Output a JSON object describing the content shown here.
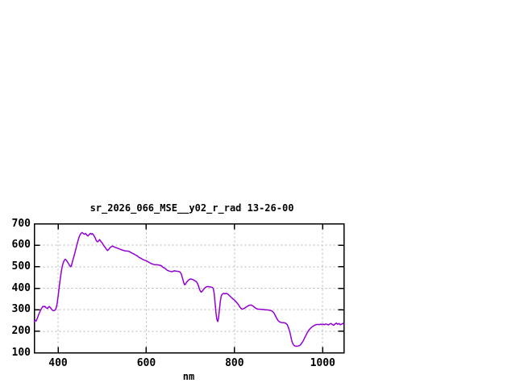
{
  "page": {
    "background": "#ffffff"
  },
  "chart": {
    "title": "sr_2026_066_MSE__y02_r_rad 13-26-00",
    "axis_color": "#000000",
    "grid_color": "#b4b4b4",
    "text_color": "#000000"
  },
  "chart_data": {
    "type": "line",
    "title": "sr_2026_066_MSE__y02_r_rad 13-26-00",
    "xlabel": "nm",
    "ylabel": "",
    "xlim": [
      346,
      1048
    ],
    "ylim": [
      100,
      700
    ],
    "xticks": [
      400,
      600,
      800,
      1000
    ],
    "yticks": [
      100,
      200,
      300,
      400,
      500,
      600,
      700
    ],
    "grid": true,
    "grid_style": "dashed",
    "legend": false,
    "series": [
      {
        "name": "sr_2026_066_MSE__y02_r_rad",
        "color": "#9400d3",
        "points": [
          [
            346,
            245
          ],
          [
            348,
            252
          ],
          [
            350,
            247
          ],
          [
            352,
            256
          ],
          [
            355,
            272
          ],
          [
            358,
            288
          ],
          [
            361,
            300
          ],
          [
            364,
            311
          ],
          [
            366,
            316
          ],
          [
            368,
            313
          ],
          [
            370,
            316
          ],
          [
            373,
            309
          ],
          [
            376,
            306
          ],
          [
            378,
            311
          ],
          [
            380,
            315
          ],
          [
            383,
            309
          ],
          [
            386,
            300
          ],
          [
            389,
            296
          ],
          [
            392,
            297
          ],
          [
            394,
            301
          ],
          [
            396,
            311
          ],
          [
            398,
            330
          ],
          [
            400,
            360
          ],
          [
            402,
            395
          ],
          [
            404,
            428
          ],
          [
            406,
            458
          ],
          [
            408,
            486
          ],
          [
            410,
            506
          ],
          [
            412,
            520
          ],
          [
            414,
            529
          ],
          [
            416,
            535
          ],
          [
            418,
            532
          ],
          [
            420,
            526
          ],
          [
            422,
            520
          ],
          [
            424,
            513
          ],
          [
            426,
            506
          ],
          [
            428,
            500
          ],
          [
            430,
            503
          ],
          [
            432,
            518
          ],
          [
            434,
            534
          ],
          [
            436,
            548
          ],
          [
            438,
            563
          ],
          [
            440,
            580
          ],
          [
            442,
            596
          ],
          [
            444,
            612
          ],
          [
            446,
            627
          ],
          [
            448,
            640
          ],
          [
            450,
            649
          ],
          [
            452,
            655
          ],
          [
            454,
            659
          ],
          [
            456,
            656
          ],
          [
            458,
            653
          ],
          [
            460,
            651
          ],
          [
            462,
            655
          ],
          [
            464,
            651
          ],
          [
            466,
            645
          ],
          [
            468,
            643
          ],
          [
            470,
            648
          ],
          [
            472,
            653
          ],
          [
            474,
            655
          ],
          [
            476,
            651
          ],
          [
            478,
            654
          ],
          [
            480,
            649
          ],
          [
            482,
            642
          ],
          [
            484,
            635
          ],
          [
            486,
            624
          ],
          [
            488,
            618
          ],
          [
            490,
            616
          ],
          [
            492,
            621
          ],
          [
            494,
            626
          ],
          [
            496,
            621
          ],
          [
            498,
            615
          ],
          [
            500,
            611
          ],
          [
            503,
            599
          ],
          [
            506,
            592
          ],
          [
            509,
            583
          ],
          [
            512,
            575
          ],
          [
            515,
            581
          ],
          [
            518,
            589
          ],
          [
            521,
            594
          ],
          [
            524,
            596
          ],
          [
            527,
            592
          ],
          [
            530,
            590
          ],
          [
            533,
            588
          ],
          [
            536,
            585
          ],
          [
            539,
            583
          ],
          [
            542,
            580
          ],
          [
            545,
            578
          ],
          [
            548,
            576
          ],
          [
            552,
            574
          ],
          [
            555,
            573
          ],
          [
            558,
            573
          ],
          [
            561,
            571
          ],
          [
            564,
            568
          ],
          [
            567,
            564
          ],
          [
            570,
            561
          ],
          [
            573,
            558
          ],
          [
            576,
            554
          ],
          [
            579,
            551
          ],
          [
            582,
            546
          ],
          [
            585,
            542
          ],
          [
            588,
            539
          ],
          [
            591,
            535
          ],
          [
            594,
            532
          ],
          [
            597,
            530
          ],
          [
            600,
            528
          ],
          [
            603,
            524
          ],
          [
            606,
            521
          ],
          [
            609,
            517
          ],
          [
            612,
            514
          ],
          [
            615,
            512
          ],
          [
            618,
            510
          ],
          [
            621,
            509
          ],
          [
            625,
            509
          ],
          [
            628,
            508
          ],
          [
            631,
            507
          ],
          [
            634,
            505
          ],
          [
            637,
            499
          ],
          [
            640,
            495
          ],
          [
            643,
            492
          ],
          [
            646,
            486
          ],
          [
            649,
            482
          ],
          [
            652,
            480
          ],
          [
            655,
            478
          ],
          [
            658,
            477
          ],
          [
            661,
            479
          ],
          [
            664,
            481
          ],
          [
            667,
            480
          ],
          [
            670,
            479
          ],
          [
            673,
            478
          ],
          [
            676,
            476
          ],
          [
            679,
            468
          ],
          [
            682,
            448
          ],
          [
            685,
            426
          ],
          [
            687,
            416
          ],
          [
            689,
            419
          ],
          [
            691,
            427
          ],
          [
            694,
            434
          ],
          [
            697,
            440
          ],
          [
            700,
            443
          ],
          [
            703,
            442
          ],
          [
            706,
            440
          ],
          [
            709,
            436
          ],
          [
            712,
            433
          ],
          [
            715,
            427
          ],
          [
            718,
            413
          ],
          [
            721,
            393
          ],
          [
            724,
            382
          ],
          [
            727,
            386
          ],
          [
            730,
            395
          ],
          [
            733,
            402
          ],
          [
            736,
            406
          ],
          [
            739,
            408
          ],
          [
            742,
            407
          ],
          [
            745,
            406
          ],
          [
            748,
            405
          ],
          [
            750,
            403
          ],
          [
            752,
            398
          ],
          [
            754,
            375
          ],
          [
            756,
            330
          ],
          [
            758,
            285
          ],
          [
            760,
            255
          ],
          [
            762,
            245
          ],
          [
            764,
            263
          ],
          [
            766,
            302
          ],
          [
            768,
            340
          ],
          [
            770,
            364
          ],
          [
            772,
            372
          ],
          [
            775,
            376
          ],
          [
            778,
            374
          ],
          [
            781,
            376
          ],
          [
            784,
            374
          ],
          [
            787,
            369
          ],
          [
            790,
            363
          ],
          [
            793,
            357
          ],
          [
            796,
            351
          ],
          [
            800,
            345
          ],
          [
            803,
            338
          ],
          [
            806,
            331
          ],
          [
            809,
            323
          ],
          [
            812,
            313
          ],
          [
            815,
            306
          ],
          [
            818,
            303
          ],
          [
            821,
            305
          ],
          [
            824,
            309
          ],
          [
            827,
            313
          ],
          [
            830,
            317
          ],
          [
            833,
            320
          ],
          [
            836,
            322
          ],
          [
            839,
            321
          ],
          [
            842,
            317
          ],
          [
            845,
            312
          ],
          [
            848,
            307
          ],
          [
            851,
            304
          ],
          [
            854,
            303
          ],
          [
            857,
            302
          ],
          [
            860,
            302
          ],
          [
            863,
            301
          ],
          [
            866,
            301
          ],
          [
            869,
            300
          ],
          [
            872,
            300
          ],
          [
            875,
            299
          ],
          [
            878,
            298
          ],
          [
            881,
            297
          ],
          [
            884,
            295
          ],
          [
            887,
            291
          ],
          [
            890,
            283
          ],
          [
            893,
            271
          ],
          [
            896,
            259
          ],
          [
            899,
            249
          ],
          [
            902,
            244
          ],
          [
            905,
            241
          ],
          [
            908,
            240
          ],
          [
            911,
            240
          ],
          [
            914,
            239
          ],
          [
            917,
            236
          ],
          [
            920,
            229
          ],
          [
            923,
            213
          ],
          [
            926,
            192
          ],
          [
            929,
            163
          ],
          [
            932,
            143
          ],
          [
            935,
            134
          ],
          [
            938,
            131
          ],
          [
            941,
            130
          ],
          [
            944,
            131
          ],
          [
            947,
            133
          ],
          [
            950,
            138
          ],
          [
            953,
            146
          ],
          [
            956,
            156
          ],
          [
            959,
            169
          ],
          [
            962,
            181
          ],
          [
            965,
            193
          ],
          [
            968,
            203
          ],
          [
            971,
            211
          ],
          [
            974,
            217
          ],
          [
            977,
            222
          ],
          [
            980,
            226
          ],
          [
            983,
            229
          ],
          [
            986,
            231
          ],
          [
            989,
            232
          ],
          [
            992,
            230
          ],
          [
            995,
            233
          ],
          [
            998,
            231
          ],
          [
            1001,
            233
          ],
          [
            1004,
            230
          ],
          [
            1007,
            234
          ],
          [
            1010,
            232
          ],
          [
            1013,
            229
          ],
          [
            1016,
            234
          ],
          [
            1019,
            236
          ],
          [
            1022,
            231
          ],
          [
            1025,
            228
          ],
          [
            1028,
            234
          ],
          [
            1031,
            238
          ],
          [
            1034,
            232
          ],
          [
            1037,
            236
          ],
          [
            1040,
            230
          ],
          [
            1043,
            233
          ],
          [
            1046,
            237
          ],
          [
            1047,
            234
          ]
        ]
      }
    ]
  }
}
